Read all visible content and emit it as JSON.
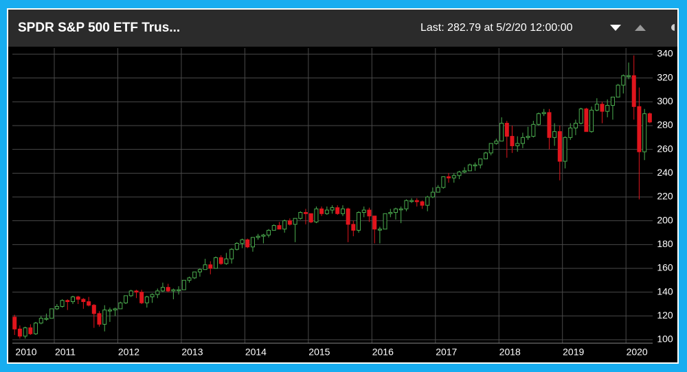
{
  "header": {
    "title": "SPDR S&P 500 ETF Trus...",
    "status": "Last: 282.79 at 5/2/20 12:00:00"
  },
  "chart_data": {
    "type": "candlestick",
    "up_color": "#4caf50",
    "down_color": "#e0151d",
    "grid": true,
    "xlim": [
      2010.34,
      2020.42
    ],
    "ylim": [
      97.1,
      345.2
    ],
    "xticks": [
      2010,
      2011,
      2012,
      2013,
      2014,
      2015,
      2016,
      2017,
      2018,
      2019,
      2020
    ],
    "yticks": [
      100,
      120,
      140,
      160,
      180,
      200,
      220,
      240,
      260,
      280,
      300,
      320,
      340
    ],
    "x": [
      2010.375,
      2010.458,
      2010.542,
      2010.625,
      2010.708,
      2010.792,
      2010.875,
      2010.958,
      2011.042,
      2011.125,
      2011.208,
      2011.292,
      2011.375,
      2011.458,
      2011.542,
      2011.625,
      2011.708,
      2011.792,
      2011.875,
      2011.958,
      2012.042,
      2012.125,
      2012.208,
      2012.292,
      2012.375,
      2012.458,
      2012.542,
      2012.625,
      2012.708,
      2012.792,
      2012.875,
      2012.958,
      2013.042,
      2013.125,
      2013.208,
      2013.292,
      2013.375,
      2013.458,
      2013.542,
      2013.625,
      2013.708,
      2013.792,
      2013.875,
      2013.958,
      2014.042,
      2014.125,
      2014.208,
      2014.292,
      2014.375,
      2014.458,
      2014.542,
      2014.625,
      2014.708,
      2014.792,
      2014.875,
      2014.958,
      2015.042,
      2015.125,
      2015.208,
      2015.292,
      2015.375,
      2015.458,
      2015.542,
      2015.625,
      2015.708,
      2015.792,
      2015.875,
      2015.958,
      2016.042,
      2016.125,
      2016.208,
      2016.292,
      2016.375,
      2016.458,
      2016.542,
      2016.625,
      2016.708,
      2016.792,
      2016.875,
      2016.958,
      2017.042,
      2017.125,
      2017.208,
      2017.292,
      2017.375,
      2017.458,
      2017.542,
      2017.625,
      2017.708,
      2017.792,
      2017.875,
      2017.958,
      2018.042,
      2018.125,
      2018.208,
      2018.292,
      2018.375,
      2018.458,
      2018.542,
      2018.625,
      2018.708,
      2018.792,
      2018.875,
      2018.958,
      2019.042,
      2019.125,
      2019.208,
      2019.292,
      2019.375,
      2019.458,
      2019.542,
      2019.625,
      2019.708,
      2019.792,
      2019.875,
      2019.958,
      2020.042,
      2020.125,
      2020.208,
      2020.292,
      2020.375
    ],
    "open": [
      119,
      109,
      103,
      110,
      105,
      114,
      118,
      118,
      126,
      128,
      133,
      132,
      136,
      134,
      132,
      129,
      122,
      113,
      125,
      125,
      126,
      131,
      137,
      141,
      140,
      131,
      136,
      138,
      141,
      144,
      141,
      142,
      142,
      150,
      152,
      157,
      159,
      163,
      160,
      169,
      164,
      168,
      176,
      181,
      184,
      178,
      186,
      187,
      188,
      192,
      196,
      193,
      200,
      197,
      202,
      207,
      206,
      199,
      210,
      206,
      209,
      211,
      206,
      210,
      197,
      192,
      207,
      209,
      204,
      193,
      193,
      206,
      207,
      210,
      210,
      217,
      217,
      216,
      213,
      220,
      224,
      228,
      237,
      236,
      238,
      241,
      242,
      247,
      247,
      252,
      257,
      265,
      267,
      282,
      271,
      263,
      265,
      270,
      271,
      281,
      290,
      291,
      270,
      275,
      250,
      270,
      278,
      282,
      294,
      275,
      293,
      298,
      292,
      297,
      304,
      314,
      322,
      322,
      296,
      258,
      290
    ],
    "high": [
      121,
      112,
      111,
      113,
      115,
      120,
      122,
      126,
      130,
      134,
      134,
      137,
      137,
      135,
      136,
      130,
      124,
      129,
      127,
      127,
      132,
      137,
      142,
      142,
      142,
      137,
      139,
      143,
      148,
      147,
      143,
      145,
      150,
      153,
      157,
      160,
      168,
      166,
      170,
      171,
      173,
      177,
      182,
      185,
      185,
      186,
      189,
      189,
      193,
      197,
      199,
      201,
      202,
      202,
      208,
      210,
      206,
      212,
      212,
      212,
      213,
      213,
      213,
      211,
      200,
      208,
      212,
      211,
      204,
      195,
      206,
      210,
      211,
      212,
      218,
      219,
      219,
      217,
      221,
      228,
      230,
      237,
      240,
      240,
      242,
      245,
      248,
      249,
      252,
      258,
      265,
      269,
      287,
      284,
      280,
      271,
      274,
      279,
      284,
      291,
      294,
      294,
      282,
      280,
      271,
      282,
      285,
      295,
      295,
      296,
      303,
      300,
      302,
      304,
      315,
      323,
      333,
      339,
      312,
      294,
      291
    ],
    "low": [
      104,
      101,
      101,
      104,
      104,
      113,
      116,
      118,
      125,
      127,
      125,
      130,
      130,
      126,
      128,
      110,
      111,
      107,
      115,
      120,
      126,
      130,
      136,
      135,
      130,
      127,
      131,
      135,
      140,
      140,
      134,
      138,
      142,
      148,
      151,
      153,
      159,
      155,
      160,
      163,
      163,
      164,
      175,
      177,
      177,
      174,
      184,
      181,
      186,
      192,
      193,
      190,
      196,
      182,
      201,
      197,
      198,
      198,
      204,
      205,
      206,
      205,
      204,
      182,
      187,
      190,
      203,
      199,
      181,
      181,
      193,
      203,
      201,
      198,
      208,
      215,
      212,
      210,
      208,
      219,
      224,
      227,
      232,
      232,
      235,
      240,
      242,
      242,
      244,
      252,
      255,
      264,
      267,
      253,
      257,
      258,
      261,
      268,
      270,
      280,
      288,
      260,
      263,
      234,
      244,
      268,
      272,
      281,
      275,
      274,
      292,
      282,
      287,
      285,
      304,
      307,
      319,
      285,
      218,
      251,
      282
    ],
    "close": [
      109,
      103,
      110,
      105,
      114,
      118,
      118,
      126,
      128,
      133,
      132,
      136,
      134,
      132,
      129,
      122,
      113,
      125,
      125,
      126,
      131,
      137,
      141,
      140,
      131,
      136,
      138,
      141,
      144,
      141,
      142,
      142,
      150,
      152,
      157,
      159,
      163,
      160,
      169,
      164,
      168,
      176,
      181,
      184,
      178,
      186,
      187,
      188,
      192,
      196,
      193,
      200,
      197,
      202,
      207,
      206,
      199,
      210,
      206,
      209,
      211,
      206,
      210,
      197,
      192,
      207,
      209,
      204,
      193,
      193,
      206,
      207,
      210,
      210,
      217,
      217,
      216,
      213,
      220,
      224,
      228,
      237,
      236,
      238,
      241,
      242,
      247,
      247,
      252,
      257,
      265,
      267,
      282,
      271,
      263,
      265,
      270,
      271,
      281,
      290,
      291,
      270,
      275,
      250,
      270,
      278,
      282,
      294,
      275,
      293,
      298,
      292,
      297,
      304,
      314,
      322,
      322,
      296,
      258,
      290,
      283
    ]
  }
}
